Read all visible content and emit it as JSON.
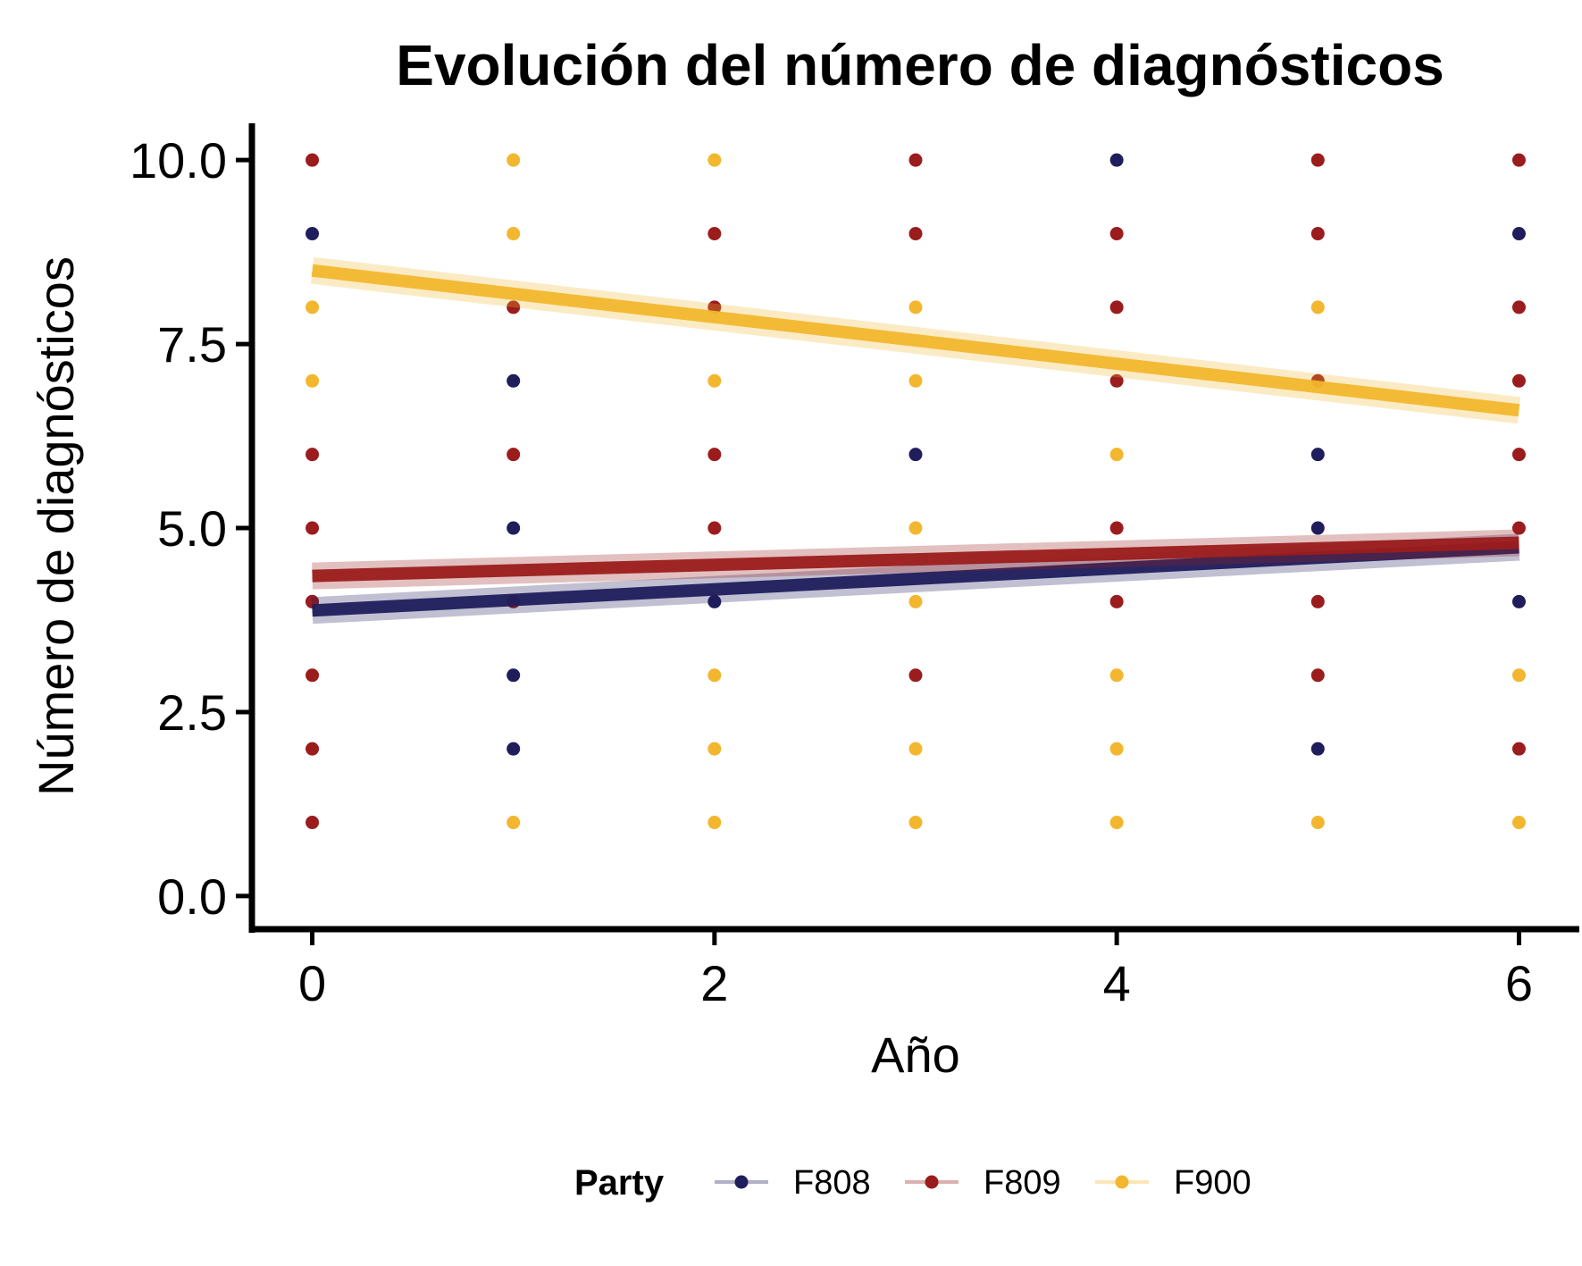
{
  "chart_data": {
    "type": "scatter",
    "title": "Evolución del número de diagnósticos",
    "xlabel": "Año",
    "ylabel": "Número de diagnósticos",
    "xlim": [
      -0.3,
      6.3
    ],
    "ylim": [
      -0.45,
      10.5
    ],
    "x_ticks": [
      0,
      2,
      4,
      6
    ],
    "x_tick_labels": [
      "0",
      "2",
      "4",
      "6"
    ],
    "y_ticks": [
      0,
      2.5,
      5,
      7.5,
      10
    ],
    "y_tick_labels": [
      "0.0",
      "2.5",
      "5.0",
      "7.5",
      "10.0"
    ],
    "grid": false,
    "legend": {
      "title": "Party",
      "placement": "bottom",
      "entries": [
        "F808",
        "F809",
        "F900"
      ]
    },
    "series": [
      {
        "name": "F808",
        "color": "#1f1d5c",
        "points": [
          {
            "x": 0,
            "y": 9
          },
          {
            "x": 0,
            "y": 4
          },
          {
            "x": 1,
            "y": 7
          },
          {
            "x": 1,
            "y": 5
          },
          {
            "x": 1,
            "y": 3
          },
          {
            "x": 1,
            "y": 2
          },
          {
            "x": 2,
            "y": 4
          },
          {
            "x": 3,
            "y": 6
          },
          {
            "x": 4,
            "y": 10
          },
          {
            "x": 5,
            "y": 6
          },
          {
            "x": 5,
            "y": 5
          },
          {
            "x": 5,
            "y": 2
          },
          {
            "x": 6,
            "y": 9
          },
          {
            "x": 6,
            "y": 4
          }
        ],
        "trend": {
          "x": [
            0,
            6
          ],
          "y": [
            3.88,
            4.74
          ]
        }
      },
      {
        "name": "F809",
        "color": "#9b1c1c",
        "points": [
          {
            "x": 0,
            "y": 10
          },
          {
            "x": 0,
            "y": 6
          },
          {
            "x": 0,
            "y": 5
          },
          {
            "x": 0,
            "y": 4
          },
          {
            "x": 0,
            "y": 3
          },
          {
            "x": 0,
            "y": 2
          },
          {
            "x": 0,
            "y": 1
          },
          {
            "x": 1,
            "y": 8
          },
          {
            "x": 1,
            "y": 6
          },
          {
            "x": 1,
            "y": 4
          },
          {
            "x": 2,
            "y": 9
          },
          {
            "x": 2,
            "y": 8
          },
          {
            "x": 2,
            "y": 6
          },
          {
            "x": 2,
            "y": 5
          },
          {
            "x": 3,
            "y": 10
          },
          {
            "x": 3,
            "y": 9
          },
          {
            "x": 3,
            "y": 3
          },
          {
            "x": 4,
            "y": 9
          },
          {
            "x": 4,
            "y": 8
          },
          {
            "x": 4,
            "y": 7
          },
          {
            "x": 4,
            "y": 5
          },
          {
            "x": 4,
            "y": 4
          },
          {
            "x": 5,
            "y": 10
          },
          {
            "x": 5,
            "y": 9
          },
          {
            "x": 5,
            "y": 7
          },
          {
            "x": 5,
            "y": 4
          },
          {
            "x": 5,
            "y": 3
          },
          {
            "x": 6,
            "y": 10
          },
          {
            "x": 6,
            "y": 8
          },
          {
            "x": 6,
            "y": 7
          },
          {
            "x": 6,
            "y": 6
          },
          {
            "x": 6,
            "y": 5
          },
          {
            "x": 6,
            "y": 2
          }
        ],
        "trend": {
          "x": [
            0,
            6
          ],
          "y": [
            4.35,
            4.8
          ]
        }
      },
      {
        "name": "F900",
        "color": "#f2b72e",
        "points": [
          {
            "x": 0,
            "y": 8
          },
          {
            "x": 0,
            "y": 7
          },
          {
            "x": 1,
            "y": 10
          },
          {
            "x": 1,
            "y": 9
          },
          {
            "x": 1,
            "y": 1
          },
          {
            "x": 2,
            "y": 10
          },
          {
            "x": 2,
            "y": 7
          },
          {
            "x": 2,
            "y": 3
          },
          {
            "x": 2,
            "y": 2
          },
          {
            "x": 2,
            "y": 1
          },
          {
            "x": 3,
            "y": 8
          },
          {
            "x": 3,
            "y": 7
          },
          {
            "x": 3,
            "y": 5
          },
          {
            "x": 3,
            "y": 4
          },
          {
            "x": 3,
            "y": 2
          },
          {
            "x": 3,
            "y": 1
          },
          {
            "x": 4,
            "y": 6
          },
          {
            "x": 4,
            "y": 3
          },
          {
            "x": 4,
            "y": 2
          },
          {
            "x": 4,
            "y": 1
          },
          {
            "x": 5,
            "y": 8
          },
          {
            "x": 5,
            "y": 1
          },
          {
            "x": 6,
            "y": 3
          },
          {
            "x": 6,
            "y": 1
          }
        ],
        "trend": {
          "x": [
            0,
            6
          ],
          "y": [
            8.5,
            6.6
          ]
        }
      }
    ]
  }
}
